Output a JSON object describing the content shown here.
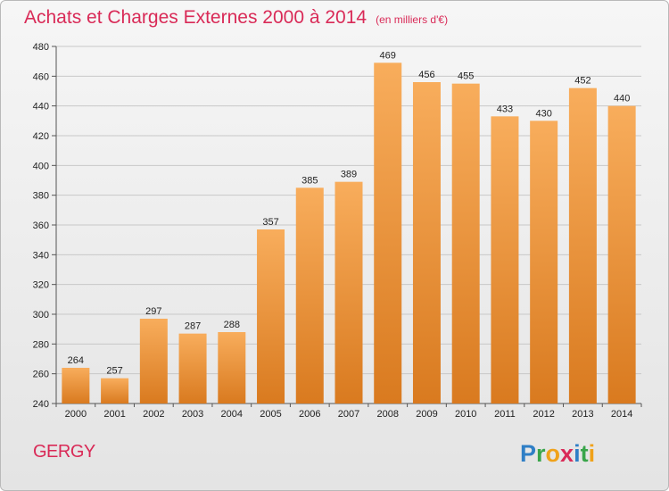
{
  "header": {
    "title": "Achats et Charges Externes 2000 à 2014",
    "unit": "(en milliers d'€)"
  },
  "footer": {
    "city": "GERGY",
    "logo_text": "Proxiti"
  },
  "colors": {
    "title": "#d92a57",
    "bar_light": "#f8ad5c",
    "bar_dark": "#d97a1f",
    "grid": "#c8c8c8"
  },
  "chart_data": {
    "type": "bar",
    "title": "Achats et Charges Externes 2000 à 2014",
    "subtitle": "(en milliers d'€)",
    "categories": [
      "2000",
      "2001",
      "2002",
      "2003",
      "2004",
      "2005",
      "2006",
      "2007",
      "2008",
      "2009",
      "2010",
      "2011",
      "2012",
      "2013",
      "2014"
    ],
    "values": [
      264,
      257,
      297,
      287,
      288,
      357,
      385,
      389,
      469,
      456,
      455,
      433,
      430,
      452,
      440
    ],
    "ylim": [
      240,
      480
    ],
    "yticks": [
      240,
      260,
      280,
      300,
      320,
      340,
      360,
      380,
      400,
      420,
      440,
      460,
      480
    ],
    "grid": true,
    "data_labels": true
  }
}
